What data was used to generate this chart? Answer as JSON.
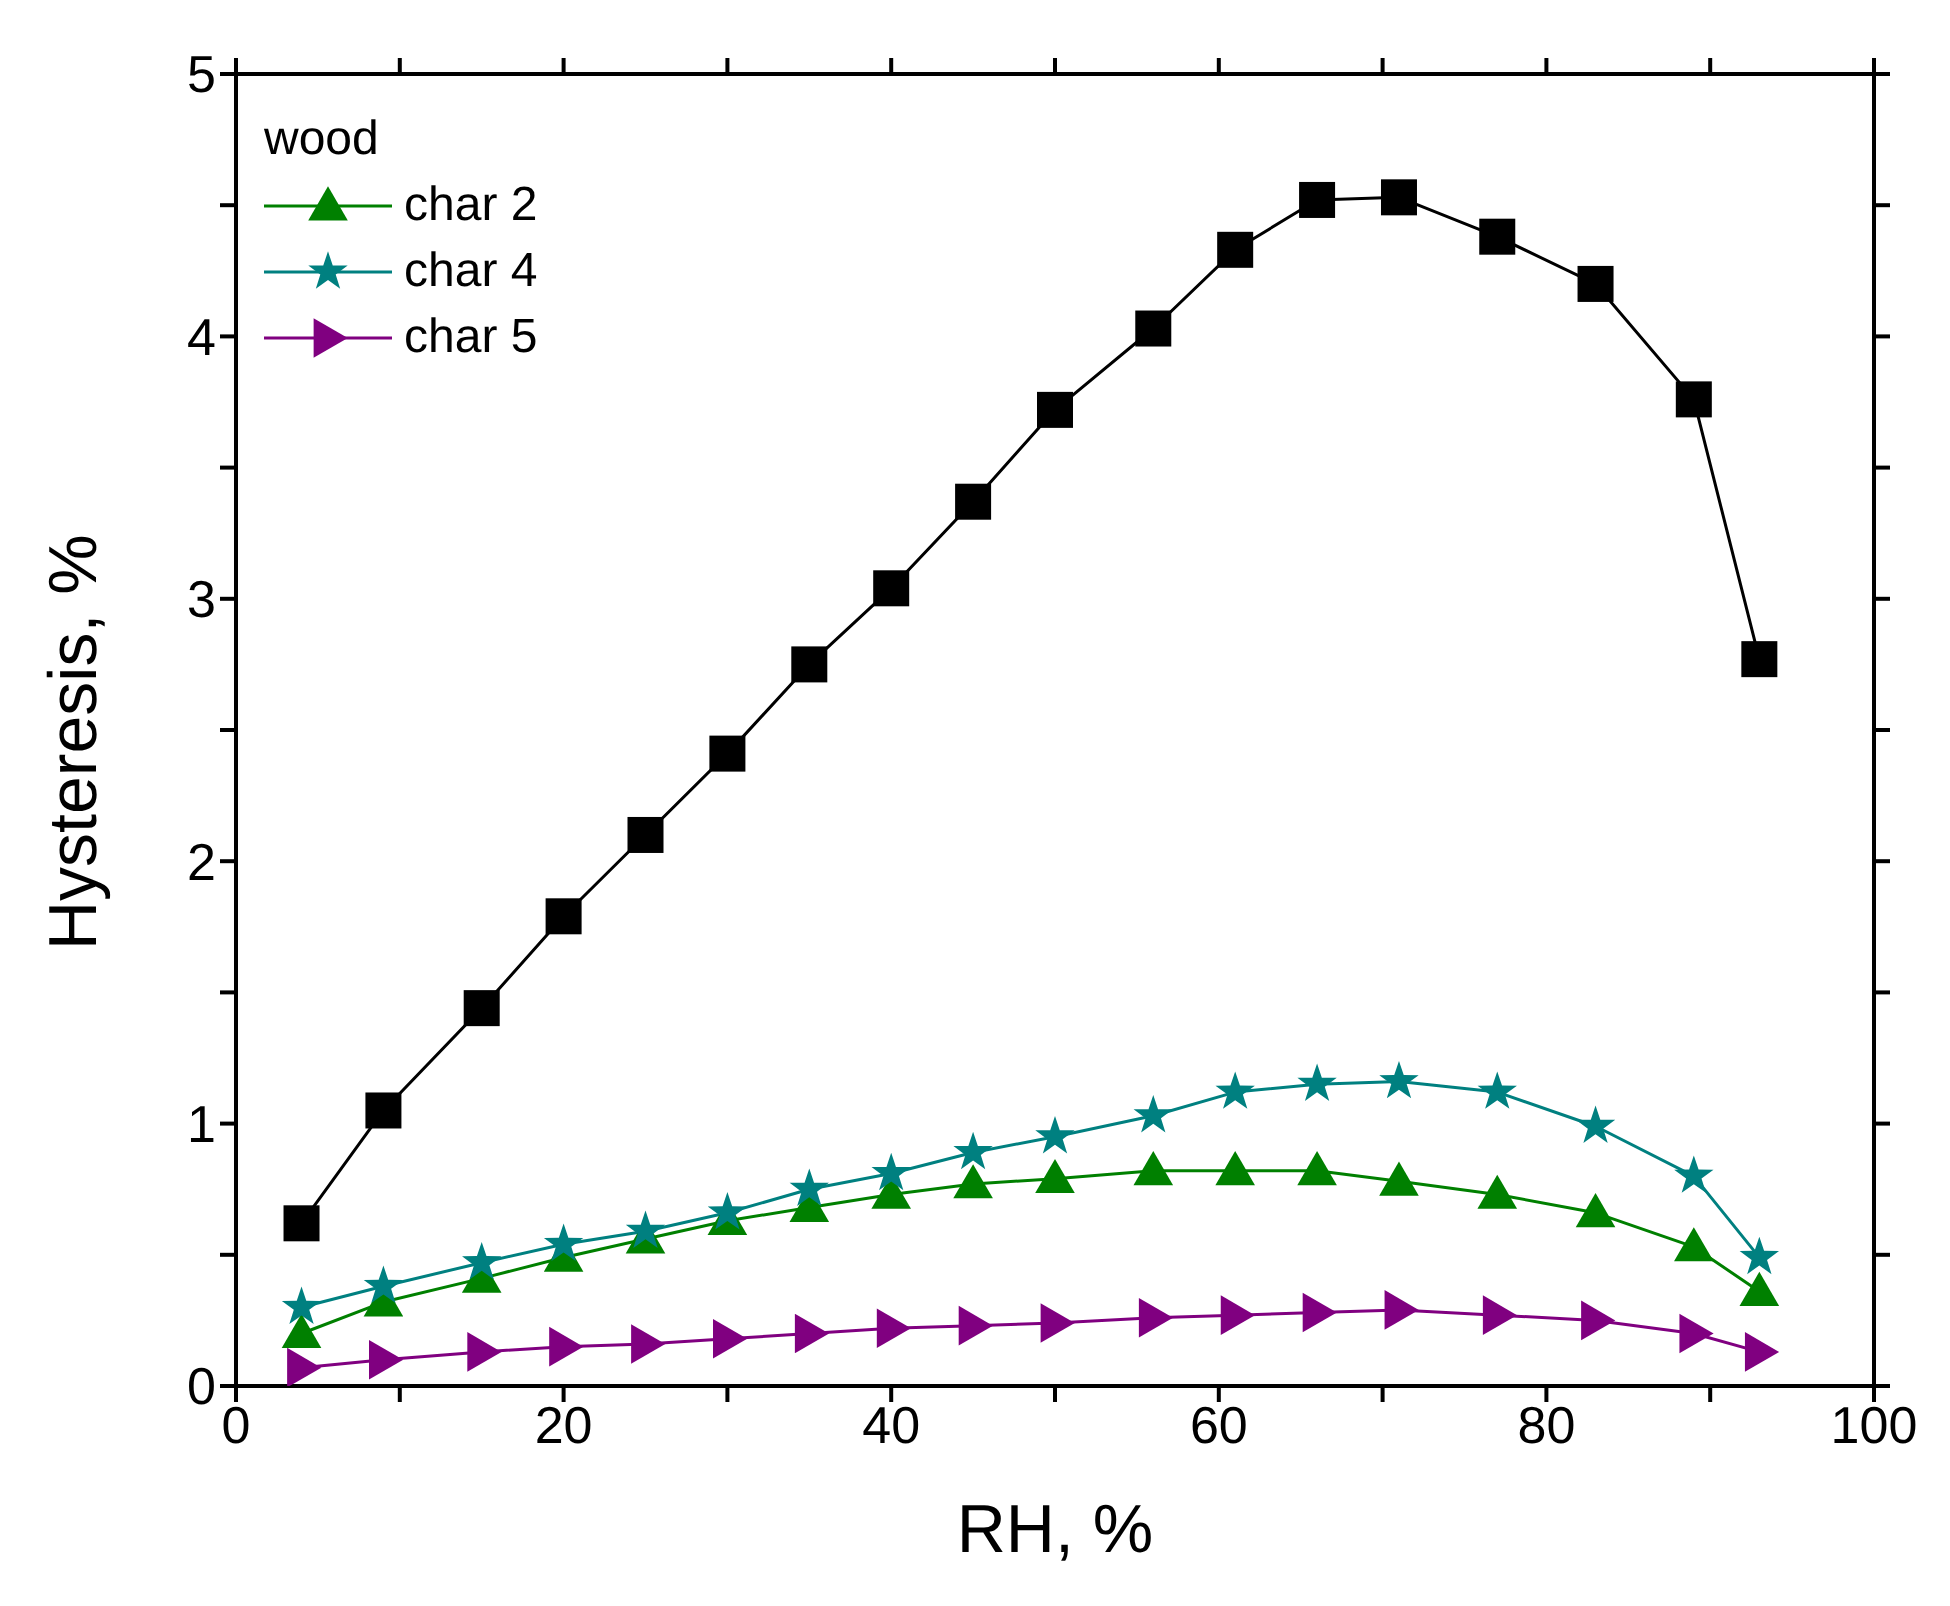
{
  "chart_data": {
    "type": "line",
    "xlabel": "RH, %",
    "ylabel": "Hysteresis, %",
    "legend_title": "wood",
    "x": [
      4,
      9,
      15,
      20,
      25,
      30,
      35,
      40,
      45,
      50,
      56,
      61,
      66,
      71,
      77,
      83,
      89,
      93
    ],
    "series": [
      {
        "color": "#000000",
        "marker": "square",
        "values": [
          0.62,
          1.05,
          1.44,
          1.79,
          2.1,
          2.41,
          2.75,
          3.04,
          3.37,
          3.72,
          4.03,
          4.33,
          4.52,
          4.53,
          4.38,
          4.2,
          3.76,
          2.77
        ]
      },
      {
        "name": "char 2",
        "color": "#008000",
        "marker": "triangle",
        "values": [
          0.2,
          0.32,
          0.41,
          0.49,
          0.56,
          0.63,
          0.68,
          0.73,
          0.77,
          0.79,
          0.82,
          0.82,
          0.82,
          0.78,
          0.73,
          0.66,
          0.53,
          0.36
        ]
      },
      {
        "name": "char 4",
        "color": "#008080",
        "marker": "star",
        "values": [
          0.3,
          0.38,
          0.47,
          0.54,
          0.59,
          0.66,
          0.75,
          0.81,
          0.89,
          0.95,
          1.03,
          1.12,
          1.15,
          1.16,
          1.12,
          0.99,
          0.8,
          0.49
        ]
      },
      {
        "name": "char 5",
        "color": "#800080",
        "marker": "triangle-right",
        "values": [
          0.07,
          0.1,
          0.13,
          0.15,
          0.16,
          0.18,
          0.2,
          0.22,
          0.23,
          0.24,
          0.26,
          0.27,
          0.28,
          0.29,
          0.27,
          0.25,
          0.2,
          0.13
        ]
      }
    ],
    "xlim": [
      0,
      100
    ],
    "xticks": [
      0,
      {
        "value": 10,
        "label": null
      },
      20,
      {
        "value": 30,
        "label": null
      },
      40,
      {
        "value": 50,
        "label": null
      },
      60,
      {
        "value": 70,
        "label": null
      },
      80,
      {
        "value": 90,
        "label": null
      },
      100
    ],
    "ylim": [
      0,
      5
    ],
    "yticks": [
      0,
      {
        "value": 0.5,
        "label": null
      },
      1,
      {
        "value": 1.5,
        "label": null
      },
      2,
      {
        "value": 2.5,
        "label": null
      },
      3,
      {
        "value": 3.5,
        "label": null
      },
      4,
      {
        "value": 4.5,
        "label": null
      },
      5
    ],
    "grid": false,
    "legend": "top left",
    "line_style": "solid"
  }
}
